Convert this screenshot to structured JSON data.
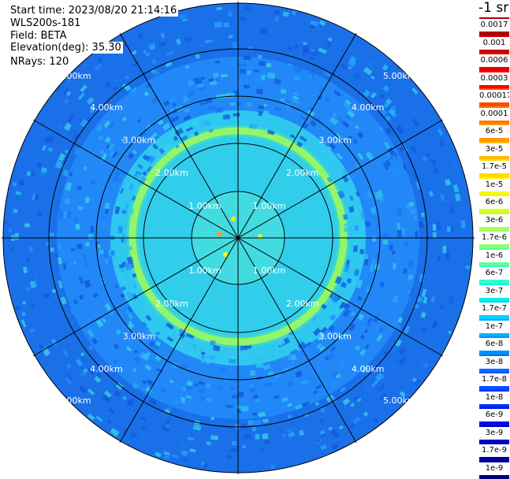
{
  "info": {
    "start_time": "Start time: 2023/08/20 21:14:16",
    "instrument": "WLS200s-181",
    "field": "Field: BETA",
    "elevation": "Elevation(deg): 35.30",
    "nrays": "NRays: 120"
  },
  "range_labels": [
    "1.00km",
    "2.00km",
    "3.00km",
    "4.00km",
    "5.00km"
  ],
  "colorbar": {
    "title": "-1 sr",
    "labels": [
      "0.0017",
      "0.001",
      "0.0006",
      "0.0003",
      "0.00017",
      "0.0001",
      "6e-5",
      "3e-5",
      "1.7e-5",
      "1e-5",
      "6e-6",
      "3e-6",
      "1.7e-6",
      "1e-6",
      "6e-7",
      "3e-7",
      "1.7e-7",
      "1e-7",
      "6e-8",
      "3e-8",
      "1.7e-8",
      "1e-8",
      "6e-9",
      "3e-9",
      "1.7e-9",
      "1e-9"
    ],
    "colors": [
      "#b00000",
      "#d00000",
      "#e80000",
      "#ff0000",
      "#ff4a00",
      "#ff7a00",
      "#ff9a00",
      "#ffba00",
      "#ffda00",
      "#fff600",
      "#d8ff20",
      "#b0ff48",
      "#90ff70",
      "#60ff98",
      "#30ffc8",
      "#00f0f0",
      "#00d0ff",
      "#00b0ff",
      "#0090ff",
      "#0070ff",
      "#0050ff",
      "#0030ff",
      "#0010e0",
      "#0000c0",
      "#0000a0",
      "#000080"
    ]
  }
}
